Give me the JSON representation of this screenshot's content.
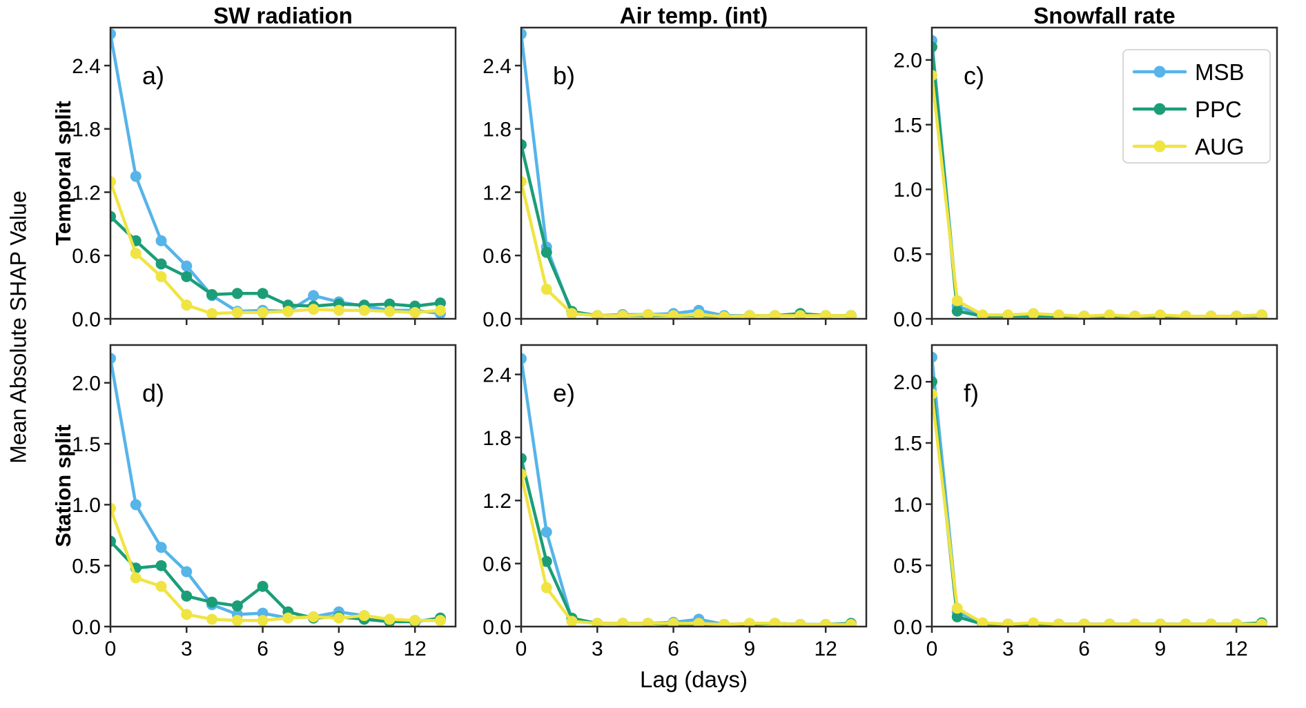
{
  "figure": {
    "ylabel": "Mean Absolute SHAP Value",
    "xlabel": "Lag (days)",
    "row_labels": [
      "Temporal split",
      "Station split"
    ],
    "col_titles": [
      "SW radiation",
      "Air temp. (int)",
      "Snowfall rate"
    ],
    "background": "#ffffff",
    "axis_color": "#2b2b2b"
  },
  "legend": {
    "position": "upper right, inside panel c",
    "items": [
      {
        "label": "MSB",
        "color": "#56B4E9"
      },
      {
        "label": "PPC",
        "color": "#1B9E77"
      },
      {
        "label": "AUG",
        "color": "#F0E442"
      }
    ]
  },
  "chart_data": [
    {
      "id": "a",
      "label": "a)",
      "type": "line",
      "row_label": "Temporal split",
      "col_title": "SW radiation",
      "x": [
        0,
        1,
        2,
        3,
        4,
        5,
        6,
        7,
        8,
        9,
        10,
        11,
        12,
        13
      ],
      "xlim": [
        0,
        13.6
      ],
      "xticks": [
        0,
        3,
        6,
        9,
        12
      ],
      "ylim": [
        0,
        2.76
      ],
      "yticks": [
        0.0,
        0.6,
        1.2,
        1.8,
        2.4
      ],
      "grid": false,
      "legend": false,
      "series": [
        {
          "name": "MSB",
          "values": [
            2.7,
            1.35,
            0.74,
            0.5,
            0.22,
            0.07,
            0.08,
            0.07,
            0.22,
            0.16,
            0.12,
            0.08,
            0.08,
            0.05
          ]
        },
        {
          "name": "PPC",
          "values": [
            0.97,
            0.74,
            0.52,
            0.4,
            0.23,
            0.24,
            0.24,
            0.13,
            0.12,
            0.14,
            0.13,
            0.14,
            0.12,
            0.15
          ]
        },
        {
          "name": "AUG",
          "values": [
            1.3,
            0.62,
            0.4,
            0.13,
            0.05,
            0.06,
            0.06,
            0.07,
            0.09,
            0.08,
            0.08,
            0.07,
            0.06,
            0.08
          ]
        }
      ]
    },
    {
      "id": "b",
      "label": "b)",
      "type": "line",
      "row_label": "Temporal split",
      "col_title": "Air temp. (int)",
      "x": [
        0,
        1,
        2,
        3,
        4,
        5,
        6,
        7,
        8,
        9,
        10,
        11,
        12,
        13
      ],
      "xlim": [
        0,
        13.6
      ],
      "xticks": [
        0,
        3,
        6,
        9,
        12
      ],
      "ylim": [
        0,
        2.76
      ],
      "yticks": [
        0.0,
        0.6,
        1.2,
        1.8,
        2.4
      ],
      "grid": false,
      "legend": false,
      "series": [
        {
          "name": "MSB",
          "values": [
            2.7,
            0.68,
            0.05,
            0.03,
            0.04,
            0.04,
            0.05,
            0.08,
            0.03,
            0.03,
            0.03,
            0.04,
            0.03,
            0.03
          ]
        },
        {
          "name": "PPC",
          "values": [
            1.65,
            0.63,
            0.07,
            0.03,
            0.03,
            0.03,
            0.03,
            0.03,
            0.02,
            0.03,
            0.03,
            0.05,
            0.03,
            0.03
          ]
        },
        {
          "name": "AUG",
          "values": [
            1.3,
            0.28,
            0.05,
            0.03,
            0.03,
            0.04,
            0.03,
            0.04,
            0.02,
            0.03,
            0.03,
            0.03,
            0.03,
            0.03
          ]
        }
      ]
    },
    {
      "id": "c",
      "label": "c)",
      "type": "line",
      "row_label": "Temporal split",
      "col_title": "Snowfall rate",
      "x": [
        0,
        1,
        2,
        3,
        4,
        5,
        6,
        7,
        8,
        9,
        10,
        11,
        12,
        13
      ],
      "xlim": [
        0,
        13.6
      ],
      "xticks": [
        0,
        3,
        6,
        9,
        12
      ],
      "ylim": [
        0,
        2.25
      ],
      "yticks": [
        0.0,
        0.5,
        1.0,
        1.5,
        2.0
      ],
      "grid": false,
      "legend": true,
      "series": [
        {
          "name": "MSB",
          "values": [
            2.15,
            0.1,
            0.02,
            0.02,
            0.04,
            0.02,
            0.02,
            0.02,
            0.02,
            0.02,
            0.02,
            0.02,
            0.02,
            0.02
          ]
        },
        {
          "name": "PPC",
          "values": [
            2.1,
            0.06,
            0.02,
            0.02,
            0.02,
            0.02,
            0.02,
            0.02,
            0.02,
            0.02,
            0.02,
            0.02,
            0.02,
            0.03
          ]
        },
        {
          "name": "AUG",
          "values": [
            1.88,
            0.14,
            0.03,
            0.03,
            0.04,
            0.03,
            0.02,
            0.03,
            0.02,
            0.03,
            0.02,
            0.02,
            0.02,
            0.03
          ]
        }
      ]
    },
    {
      "id": "d",
      "label": "d)",
      "type": "line",
      "row_label": "Station split",
      "col_title": "SW radiation",
      "x": [
        0,
        1,
        2,
        3,
        4,
        5,
        6,
        7,
        8,
        9,
        10,
        11,
        12,
        13
      ],
      "xlim": [
        0,
        13.6
      ],
      "xticks": [
        0,
        3,
        6,
        9,
        12
      ],
      "ylim": [
        0,
        2.31
      ],
      "yticks": [
        0.0,
        0.5,
        1.0,
        1.5,
        2.0
      ],
      "grid": false,
      "legend": false,
      "series": [
        {
          "name": "MSB",
          "values": [
            2.2,
            1.0,
            0.65,
            0.45,
            0.18,
            0.1,
            0.11,
            0.07,
            0.08,
            0.12,
            0.09,
            0.05,
            0.05,
            0.05
          ]
        },
        {
          "name": "PPC",
          "values": [
            0.7,
            0.48,
            0.5,
            0.25,
            0.2,
            0.17,
            0.33,
            0.12,
            0.07,
            0.08,
            0.06,
            0.04,
            0.04,
            0.07
          ]
        },
        {
          "name": "AUG",
          "values": [
            0.97,
            0.4,
            0.33,
            0.1,
            0.06,
            0.05,
            0.05,
            0.07,
            0.08,
            0.07,
            0.09,
            0.06,
            0.05,
            0.05
          ]
        }
      ]
    },
    {
      "id": "e",
      "label": "e)",
      "type": "line",
      "row_label": "Station split",
      "col_title": "Air temp. (int)",
      "x": [
        0,
        1,
        2,
        3,
        4,
        5,
        6,
        7,
        8,
        9,
        10,
        11,
        12,
        13
      ],
      "xlim": [
        0,
        13.6
      ],
      "xticks": [
        0,
        3,
        6,
        9,
        12
      ],
      "ylim": [
        0,
        2.68
      ],
      "yticks": [
        0.0,
        0.6,
        1.2,
        1.8,
        2.4
      ],
      "grid": false,
      "legend": false,
      "series": [
        {
          "name": "MSB",
          "values": [
            2.55,
            0.9,
            0.06,
            0.03,
            0.03,
            0.03,
            0.04,
            0.07,
            0.02,
            0.03,
            0.03,
            0.02,
            0.02,
            0.02
          ]
        },
        {
          "name": "PPC",
          "values": [
            1.6,
            0.62,
            0.08,
            0.03,
            0.03,
            0.03,
            0.02,
            0.02,
            0.02,
            0.02,
            0.03,
            0.02,
            0.02,
            0.03
          ]
        },
        {
          "name": "AUG",
          "values": [
            1.45,
            0.37,
            0.05,
            0.03,
            0.03,
            0.03,
            0.03,
            0.03,
            0.02,
            0.03,
            0.03,
            0.02,
            0.02,
            0.02
          ]
        }
      ]
    },
    {
      "id": "f",
      "label": "f)",
      "type": "line",
      "row_label": "Station split",
      "col_title": "Snowfall rate",
      "x": [
        0,
        1,
        2,
        3,
        4,
        5,
        6,
        7,
        8,
        9,
        10,
        11,
        12,
        13
      ],
      "xlim": [
        0,
        13.6
      ],
      "xticks": [
        0,
        3,
        6,
        9,
        12
      ],
      "ylim": [
        0,
        2.3
      ],
      "yticks": [
        0.0,
        0.5,
        1.0,
        1.5,
        2.0
      ],
      "grid": false,
      "legend": false,
      "series": [
        {
          "name": "MSB",
          "values": [
            2.2,
            0.12,
            0.02,
            0.02,
            0.02,
            0.02,
            0.02,
            0.02,
            0.02,
            0.02,
            0.02,
            0.02,
            0.02,
            0.02
          ]
        },
        {
          "name": "PPC",
          "values": [
            2.0,
            0.08,
            0.02,
            0.02,
            0.02,
            0.02,
            0.02,
            0.02,
            0.02,
            0.02,
            0.02,
            0.02,
            0.02,
            0.03
          ]
        },
        {
          "name": "AUG",
          "values": [
            1.9,
            0.15,
            0.03,
            0.02,
            0.03,
            0.02,
            0.02,
            0.02,
            0.02,
            0.02,
            0.02,
            0.02,
            0.02,
            0.02
          ]
        }
      ]
    }
  ]
}
